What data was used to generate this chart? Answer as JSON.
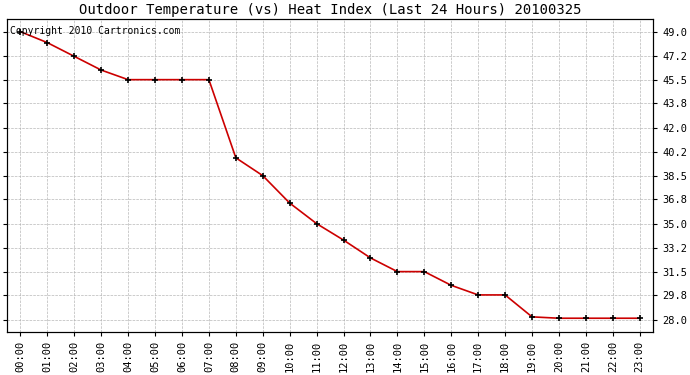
{
  "title": "Outdoor Temperature (vs) Heat Index (Last 24 Hours) 20100325",
  "copyright": "Copyright 2010 Cartronics.com",
  "x_labels": [
    "00:00",
    "01:00",
    "02:00",
    "03:00",
    "04:00",
    "05:00",
    "06:00",
    "07:00",
    "08:00",
    "09:00",
    "10:00",
    "11:00",
    "12:00",
    "13:00",
    "14:00",
    "15:00",
    "16:00",
    "17:00",
    "18:00",
    "19:00",
    "20:00",
    "21:00",
    "22:00",
    "23:00"
  ],
  "y_values": [
    49.0,
    48.2,
    47.2,
    46.2,
    45.5,
    45.5,
    45.5,
    45.5,
    39.8,
    38.5,
    36.5,
    35.0,
    33.8,
    32.5,
    31.5,
    31.5,
    30.5,
    29.8,
    29.8,
    28.2,
    28.1,
    28.1,
    28.1,
    28.1
  ],
  "y_ticks": [
    28.0,
    29.8,
    31.5,
    33.2,
    35.0,
    36.8,
    38.5,
    40.2,
    42.0,
    43.8,
    45.5,
    47.2,
    49.0
  ],
  "ylim_min": 27.1,
  "ylim_max": 49.9,
  "line_color": "#cc0000",
  "marker_color": "#000000",
  "bg_color": "#ffffff",
  "grid_color": "#b0b0b0",
  "title_fontsize": 10,
  "copyright_fontsize": 7,
  "tick_fontsize": 7.5,
  "figwidth": 6.9,
  "figheight": 3.75
}
